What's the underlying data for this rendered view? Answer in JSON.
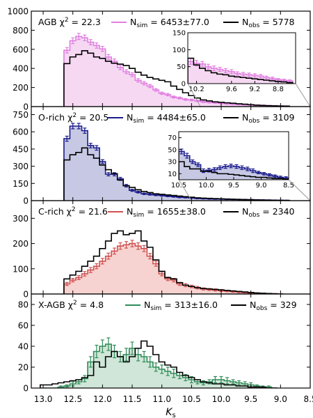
{
  "chart_data": {
    "type": "histogram",
    "shared_x": {
      "label": "K",
      "label_subscript": "s",
      "range": [
        13.2,
        8.5
      ],
      "ticks": [
        13.0,
        12.5,
        12.0,
        11.5,
        11.0,
        10.5,
        10.0,
        9.5,
        9.0,
        8.5
      ],
      "tick_labels": [
        "13.0",
        "12.5",
        "12.0",
        "11.5",
        "11.0",
        "10.5",
        "10.0",
        "9.5",
        "9.0",
        "8.5"
      ]
    },
    "panels": [
      {
        "name": "AGB",
        "chi2": "22.3",
        "sim_label": "6453±77.0",
        "obs_label": "5778",
        "color": "#e07fe0",
        "fill": "#f6d8f3",
        "ylim": [
          0,
          1000
        ],
        "yticks": [
          0,
          200,
          400,
          600,
          800,
          1000
        ],
        "bin_edges": [
          12.65,
          12.55,
          12.45,
          12.35,
          12.25,
          12.15,
          12.05,
          11.95,
          11.85,
          11.75,
          11.65,
          11.55,
          11.45,
          11.35,
          11.25,
          11.15,
          11.05,
          10.95,
          10.85,
          10.75,
          10.65,
          10.55,
          10.45,
          10.35,
          10.25,
          10.15,
          10.05,
          9.95,
          9.85,
          9.75,
          9.65,
          9.55,
          9.45,
          9.35,
          9.25,
          9.15,
          9.05,
          8.95,
          8.85
        ],
        "sim": [
          590,
          690,
          735,
          720,
          675,
          640,
          605,
          520,
          475,
          410,
          365,
          335,
          275,
          245,
          215,
          175,
          140,
          125,
          100,
          90,
          75,
          70,
          60,
          50,
          45,
          40,
          35,
          30,
          25,
          22,
          20,
          16,
          14,
          12,
          10,
          8,
          6,
          5
        ],
        "sim_err": [
          28,
          30,
          32,
          30,
          28,
          28,
          26,
          25,
          24,
          22,
          20,
          20,
          18,
          17,
          16,
          14,
          12,
          12,
          10,
          10,
          9,
          9,
          8,
          8,
          7,
          7,
          6,
          6,
          5,
          5,
          5,
          4,
          4,
          4,
          3,
          3,
          3,
          3
        ],
        "obs": [
          450,
          520,
          545,
          585,
          560,
          520,
          505,
          475,
          455,
          445,
          430,
          400,
          360,
          330,
          305,
          290,
          275,
          260,
          215,
          180,
          145,
          115,
          90,
          70,
          60,
          50,
          45,
          40,
          35,
          30,
          25,
          20,
          15,
          12,
          10,
          8,
          6,
          5
        ],
        "inset": {
          "xlim": [
            10.35,
            8.5
          ],
          "ylim": [
            0,
            150
          ],
          "xticks": [
            10.2,
            9.6,
            9.2,
            8.8
          ],
          "xtick_labels": [
            "10.2",
            "9.6",
            "9.2",
            "8.8"
          ],
          "yticks": [
            0,
            50,
            100,
            150
          ],
          "bin_edges": [
            10.35,
            10.25,
            10.15,
            10.05,
            9.95,
            9.85,
            9.75,
            9.65,
            9.55,
            9.45,
            9.35,
            9.25,
            9.15,
            9.05,
            8.95,
            8.85,
            8.75,
            8.65,
            8.55
          ],
          "sim": [
            65,
            60,
            58,
            50,
            45,
            42,
            38,
            35,
            30,
            28,
            26,
            24,
            22,
            18,
            15,
            12,
            10,
            8
          ],
          "sim_err": [
            8,
            8,
            7,
            7,
            7,
            6,
            6,
            6,
            5,
            5,
            5,
            5,
            5,
            4,
            4,
            3,
            3,
            3
          ],
          "obs": [
            75,
            55,
            45,
            38,
            32,
            28,
            26,
            22,
            20,
            18,
            16,
            14,
            12,
            10,
            8,
            6,
            5,
            3
          ]
        }
      },
      {
        "name": "O-rich",
        "chi2": "20.5",
        "sim_label": "4484±65.0",
        "obs_label": "3109",
        "color": "#1a1a8c",
        "fill": "#c7c9e4",
        "ylim": [
          0,
          820
        ],
        "yticks": [
          0,
          150,
          300,
          450,
          600,
          750
        ],
        "bin_edges": [
          12.65,
          12.55,
          12.45,
          12.35,
          12.25,
          12.15,
          12.05,
          11.95,
          11.85,
          11.75,
          11.65,
          11.55,
          11.45,
          11.35,
          11.25,
          11.15,
          11.05,
          10.95,
          10.85,
          10.75,
          10.65,
          10.55,
          10.45,
          10.35,
          10.25,
          10.15,
          10.05,
          9.95,
          9.85,
          9.75,
          9.65,
          9.55,
          9.45,
          9.35,
          9.25,
          9.15,
          9.05,
          8.95,
          8.85
        ],
        "sim": [
          540,
          650,
          650,
          610,
          480,
          460,
          340,
          230,
          230,
          190,
          130,
          90,
          75,
          60,
          55,
          50,
          45,
          40,
          35,
          30,
          28,
          24,
          20,
          18,
          16,
          14,
          14,
          12,
          11,
          10,
          9,
          8,
          7,
          6,
          5,
          4,
          3,
          2
        ],
        "sim_err": [
          22,
          24,
          24,
          23,
          20,
          20,
          17,
          14,
          14,
          13,
          11,
          9,
          8,
          7,
          7,
          7,
          6,
          6,
          5,
          5,
          5,
          4,
          4,
          4,
          4,
          3,
          3,
          3,
          3,
          3,
          3,
          2,
          2,
          2,
          2,
          2,
          2,
          2
        ],
        "obs": [
          355,
          400,
          420,
          460,
          400,
          370,
          310,
          270,
          235,
          180,
          130,
          115,
          95,
          80,
          70,
          60,
          55,
          50,
          45,
          40,
          35,
          30,
          25,
          22,
          20,
          18,
          16,
          14,
          12,
          10,
          9,
          8,
          6,
          5,
          4,
          3,
          3,
          2
        ],
        "inset": {
          "xlim": [
            10.5,
            8.5
          ],
          "ylim": [
            0,
            80
          ],
          "xticks": [
            10.5,
            10.0,
            9.5,
            9.0,
            8.5
          ],
          "xtick_labels": [
            "10.5",
            "10.0",
            "9.5",
            "9.0",
            "8.5"
          ],
          "yticks": [
            10,
            30,
            50,
            70
          ],
          "bin_edges": [
            10.5,
            10.4,
            10.3,
            10.2,
            10.1,
            10.0,
            9.9,
            9.8,
            9.7,
            9.6,
            9.5,
            9.4,
            9.3,
            9.2,
            9.1,
            9.0,
            8.9,
            8.8,
            8.7,
            8.6,
            8.5
          ],
          "sim": [
            47,
            40,
            30,
            25,
            15,
            16,
            17,
            20,
            22,
            23,
            22,
            20,
            18,
            15,
            12,
            10,
            8,
            6,
            4,
            3
          ],
          "sim_err": [
            4,
            4,
            3,
            3,
            3,
            3,
            3,
            3,
            3,
            3,
            3,
            3,
            3,
            3,
            2,
            2,
            2,
            2,
            2,
            2
          ],
          "obs": [
            30,
            22,
            18,
            18,
            14,
            14,
            12,
            10,
            10,
            9,
            8,
            7,
            6,
            5,
            4,
            4,
            3,
            2,
            2,
            1
          ]
        }
      },
      {
        "name": "C-rich",
        "chi2": "21.6",
        "sim_label": "1655±38.0",
        "obs_label": "2340",
        "color": "#d05050",
        "fill": "#f6d3d0",
        "ylim": [
          0,
          370
        ],
        "yticks": [
          0,
          100,
          200,
          300
        ],
        "bin_edges": [
          12.65,
          12.55,
          12.45,
          12.35,
          12.25,
          12.15,
          12.05,
          11.95,
          11.85,
          11.75,
          11.65,
          11.55,
          11.45,
          11.35,
          11.25,
          11.15,
          11.05,
          10.95,
          10.85,
          10.75,
          10.65,
          10.55,
          10.45,
          10.35,
          10.25,
          10.15,
          10.05,
          9.95,
          9.85,
          9.75,
          9.65,
          9.55,
          9.45,
          9.35,
          9.25,
          9.15,
          9.05,
          8.95
        ],
        "sim": [
          40,
          55,
          65,
          80,
          95,
          110,
          130,
          150,
          170,
          190,
          195,
          200,
          190,
          180,
          150,
          120,
          80,
          60,
          55,
          40,
          35,
          30,
          25,
          20,
          18,
          16,
          14,
          12,
          10,
          8,
          6,
          4,
          3,
          2,
          1,
          1,
          0
        ],
        "sim_err": [
          6,
          7,
          8,
          9,
          10,
          10,
          11,
          12,
          12,
          13,
          13,
          13,
          13,
          12,
          11,
          10,
          8,
          7,
          7,
          6,
          6,
          5,
          5,
          4,
          4,
          4,
          4,
          3,
          3,
          3,
          2,
          2,
          2,
          1,
          1,
          1,
          0
        ],
        "obs": [
          60,
          75,
          90,
          110,
          130,
          150,
          180,
          210,
          240,
          250,
          235,
          240,
          250,
          210,
          185,
          135,
          90,
          65,
          60,
          45,
          35,
          30,
          25,
          22,
          20,
          18,
          16,
          14,
          12,
          10,
          8,
          6,
          4,
          3,
          2,
          1,
          0
        ]
      },
      {
        "name": "X-AGB",
        "chi2": "4.8",
        "sim_label": "313±16.0",
        "obs_label": "329",
        "color": "#2e8b57",
        "fill": "#cfe6d8",
        "ylim": [
          0,
          90
        ],
        "yticks": [
          0,
          20,
          40,
          60,
          80
        ],
        "bin_edges": [
          13.05,
          12.95,
          12.85,
          12.75,
          12.65,
          12.55,
          12.45,
          12.35,
          12.25,
          12.15,
          12.05,
          11.95,
          11.85,
          11.75,
          11.65,
          11.55,
          11.45,
          11.35,
          11.25,
          11.15,
          11.05,
          10.95,
          10.85,
          10.75,
          10.65,
          10.55,
          10.45,
          10.35,
          10.25,
          10.15,
          10.05,
          9.95,
          9.85,
          9.75,
          9.65,
          9.55,
          9.45,
          9.35,
          9.25,
          9.15,
          9.05
        ],
        "sim": [
          0,
          0,
          0,
          1,
          2,
          4,
          6,
          9,
          25,
          35,
          40,
          42,
          35,
          30,
          32,
          38,
          32,
          30,
          25,
          20,
          18,
          16,
          14,
          12,
          10,
          8,
          6,
          5,
          6,
          8,
          8,
          7,
          6,
          5,
          4,
          3,
          2,
          1,
          1,
          0
        ],
        "sim_err": [
          0,
          0,
          0,
          1,
          1,
          2,
          2,
          3,
          5,
          6,
          6,
          6,
          6,
          5,
          6,
          6,
          6,
          5,
          5,
          4,
          4,
          4,
          4,
          3,
          3,
          3,
          2,
          2,
          2,
          3,
          3,
          3,
          2,
          2,
          2,
          2,
          1,
          1,
          1,
          0
        ],
        "obs": [
          3,
          3,
          4,
          5,
          6,
          7,
          8,
          10,
          12,
          25,
          20,
          30,
          35,
          30,
          25,
          30,
          38,
          45,
          40,
          32,
          25,
          22,
          20,
          15,
          12,
          10,
          8,
          6,
          5,
          4,
          4,
          3,
          3,
          2,
          2,
          1,
          1,
          1,
          0,
          0
        ]
      }
    ]
  }
}
